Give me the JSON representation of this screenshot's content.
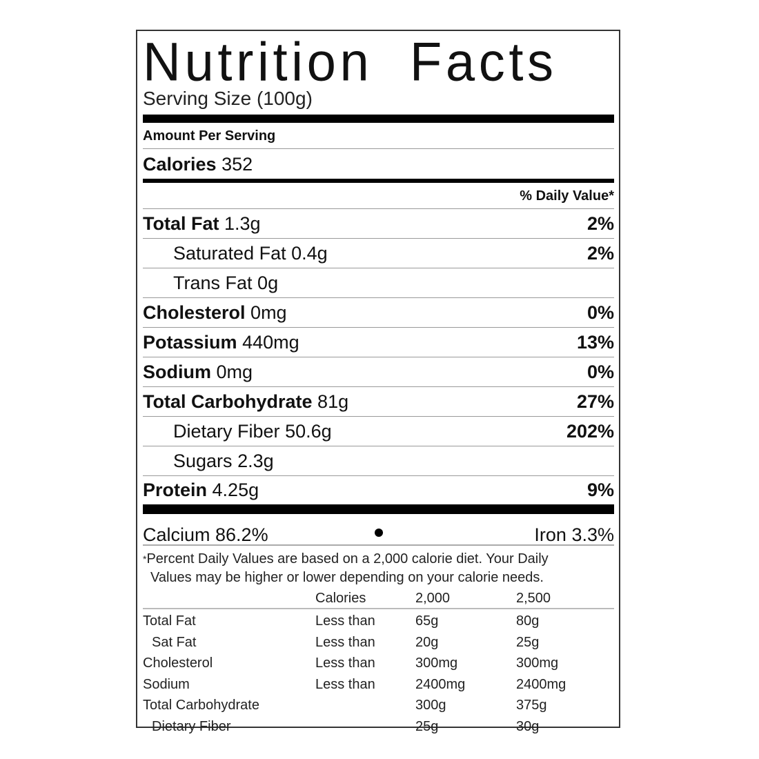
{
  "title": "Nutrition  Facts",
  "serving_size": "Serving Size  (100g)",
  "amount_per_serving": "Amount Per Serving",
  "calories": {
    "label": "Calories",
    "value": "352"
  },
  "daily_value_header": "% Daily Value*",
  "nutrients": [
    {
      "name": "Total Fat",
      "amount": "1.3g",
      "dv": "2%",
      "sub": false
    },
    {
      "name": "Saturated Fat",
      "amount": "0.4g",
      "dv": "2%",
      "sub": true
    },
    {
      "name": "Trans Fat",
      "amount": "0g",
      "dv": "",
      "sub": true
    },
    {
      "name": "Cholesterol",
      "amount": "0mg",
      "dv": "0%",
      "sub": false
    },
    {
      "name": "Potassium",
      "amount": "440mg",
      "dv": "13%",
      "sub": false
    },
    {
      "name": "Sodium",
      "amount": "0mg",
      "dv": "0%",
      "sub": false
    },
    {
      "name": "Total Carbohydrate",
      "amount": "81g",
      "dv": "27%",
      "sub": false
    },
    {
      "name": "Dietary Fiber",
      "amount": "50.6g",
      "dv": "202%",
      "sub": true
    },
    {
      "name": "Sugars",
      "amount": "2.3g",
      "dv": "",
      "sub": true
    },
    {
      "name": "Protein",
      "amount": "4.25g",
      "dv": "9%",
      "sub": false
    }
  ],
  "vitamins": {
    "calcium": "Calcium 86.2%",
    "iron": "Iron 3.3%"
  },
  "footnote": {
    "star": "*",
    "line1": "Percent Daily Values are based on a 2,000 calorie diet. Your Daily",
    "line2": "Values may be higher or lower depending on your calorie needs."
  },
  "reference_table": {
    "header": [
      "",
      "Calories",
      "2,000",
      "2,500"
    ],
    "rows": [
      [
        "Total Fat",
        "Less than",
        "65g",
        "80g"
      ],
      [
        "Sat Fat",
        "Less than",
        "20g",
        "25g"
      ],
      [
        "Cholesterol",
        "Less than",
        "300mg",
        "300mg"
      ],
      [
        "Sodium",
        "Less than",
        "2400mg",
        "2400mg"
      ],
      [
        "Total Carbohydrate",
        "",
        "300g",
        "375g"
      ],
      [
        "Dietary Fiber",
        "",
        "25g",
        "30g"
      ]
    ]
  }
}
